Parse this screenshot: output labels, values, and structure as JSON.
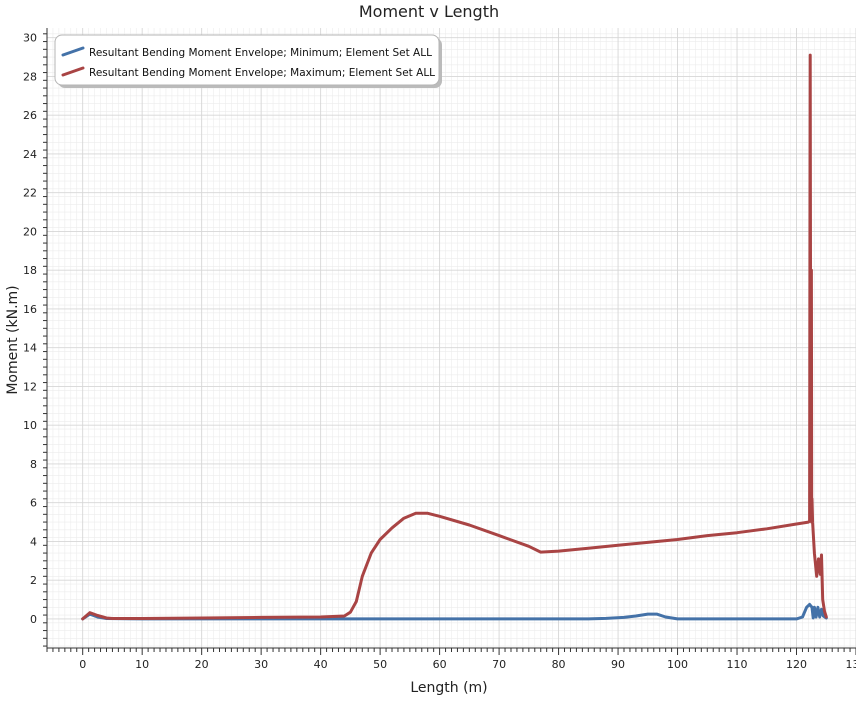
{
  "chart_data": {
    "type": "line",
    "title": "Moment v Length",
    "xlabel": "Length (m)",
    "ylabel": "Moment (kN.m)",
    "xlim": [
      -6,
      130
    ],
    "ylim": [
      -1.5,
      30.5
    ],
    "xticks": [
      0,
      10,
      20,
      30,
      40,
      50,
      60,
      70,
      80,
      90,
      100,
      110,
      120,
      130
    ],
    "yticks": [
      0,
      2,
      4,
      6,
      8,
      10,
      12,
      14,
      16,
      18,
      20,
      22,
      24,
      26,
      28,
      30
    ],
    "grid": true,
    "legend_position": "top-left",
    "series": [
      {
        "name": "Resultant Bending Moment Envelope; Minimum; Element Set ALL",
        "color": "#4472a8",
        "points": [
          [
            0,
            0
          ],
          [
            1.2,
            0.25
          ],
          [
            2.5,
            0.1
          ],
          [
            4,
            0.02
          ],
          [
            10,
            0
          ],
          [
            40,
            0
          ],
          [
            44,
            0
          ],
          [
            50,
            0
          ],
          [
            60,
            0
          ],
          [
            70,
            0
          ],
          [
            80,
            0
          ],
          [
            85,
            0
          ],
          [
            88,
            0.03
          ],
          [
            91,
            0.08
          ],
          [
            93,
            0.15
          ],
          [
            95,
            0.25
          ],
          [
            96.5,
            0.25
          ],
          [
            98,
            0.1
          ],
          [
            100,
            0
          ],
          [
            110,
            0
          ],
          [
            120,
            0
          ],
          [
            121,
            0.1
          ],
          [
            121.7,
            0.6
          ],
          [
            122.2,
            0.75
          ],
          [
            122.6,
            0.6
          ],
          [
            122.8,
            0.05
          ],
          [
            123,
            0.6
          ],
          [
            123.3,
            0.1
          ],
          [
            123.6,
            0.6
          ],
          [
            123.9,
            0.1
          ],
          [
            124.2,
            0.5
          ],
          [
            124.5,
            0.15
          ],
          [
            125,
            0.05
          ]
        ]
      },
      {
        "name": "Resultant Bending Moment Envelope; Maximum; Element Set ALL",
        "color": "#a94444",
        "points": [
          [
            0,
            0
          ],
          [
            1.2,
            0.32
          ],
          [
            2.5,
            0.18
          ],
          [
            4,
            0.05
          ],
          [
            5,
            0.02
          ],
          [
            10,
            0.02
          ],
          [
            20,
            0.05
          ],
          [
            30,
            0.08
          ],
          [
            40,
            0.1
          ],
          [
            44,
            0.15
          ],
          [
            45,
            0.35
          ],
          [
            46,
            0.9
          ],
          [
            47,
            2.2
          ],
          [
            48.5,
            3.4
          ],
          [
            50,
            4.1
          ],
          [
            52,
            4.7
          ],
          [
            54,
            5.2
          ],
          [
            56,
            5.45
          ],
          [
            58,
            5.45
          ],
          [
            60,
            5.3
          ],
          [
            65,
            4.85
          ],
          [
            70,
            4.3
          ],
          [
            75,
            3.75
          ],
          [
            77,
            3.45
          ],
          [
            80,
            3.5
          ],
          [
            85,
            3.65
          ],
          [
            90,
            3.8
          ],
          [
            95,
            3.95
          ],
          [
            100,
            4.1
          ],
          [
            105,
            4.3
          ],
          [
            110,
            4.45
          ],
          [
            115,
            4.65
          ],
          [
            120,
            4.9
          ],
          [
            122,
            5.0
          ],
          [
            122.2,
            5.05
          ],
          [
            122.3,
            29.1
          ],
          [
            122.4,
            7.0
          ],
          [
            122.5,
            18.0
          ],
          [
            122.55,
            5.0
          ],
          [
            122.6,
            6.2
          ],
          [
            122.7,
            5.0
          ],
          [
            123,
            3.4
          ],
          [
            123.4,
            2.2
          ],
          [
            123.7,
            3.1
          ],
          [
            124,
            2.3
          ],
          [
            124.2,
            3.3
          ],
          [
            124.4,
            1.0
          ],
          [
            124.7,
            0.4
          ],
          [
            125,
            0.1
          ]
        ]
      }
    ]
  }
}
